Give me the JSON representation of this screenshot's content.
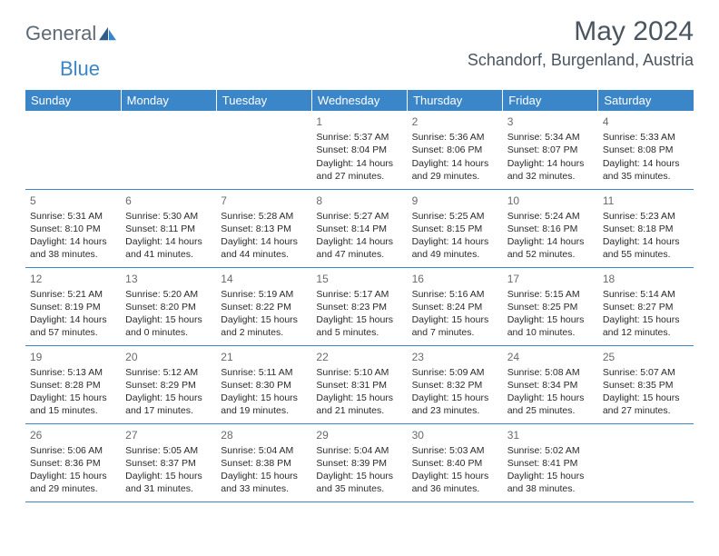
{
  "logo": {
    "text1": "General",
    "text2": "Blue"
  },
  "title": "May 2024",
  "location": "Schandorf, Burgenland, Austria",
  "colors": {
    "header_bg": "#3a86c8",
    "header_text": "#ffffff",
    "cell_border": "#3a86c8",
    "text": "#2a2a2a",
    "title_color": "#4a5560"
  },
  "weekdays": [
    "Sunday",
    "Monday",
    "Tuesday",
    "Wednesday",
    "Thursday",
    "Friday",
    "Saturday"
  ],
  "weeks": [
    [
      null,
      null,
      null,
      {
        "n": "1",
        "sr": "5:37 AM",
        "ss": "8:04 PM",
        "dl": "14 hours and 27 minutes."
      },
      {
        "n": "2",
        "sr": "5:36 AM",
        "ss": "8:06 PM",
        "dl": "14 hours and 29 minutes."
      },
      {
        "n": "3",
        "sr": "5:34 AM",
        "ss": "8:07 PM",
        "dl": "14 hours and 32 minutes."
      },
      {
        "n": "4",
        "sr": "5:33 AM",
        "ss": "8:08 PM",
        "dl": "14 hours and 35 minutes."
      }
    ],
    [
      {
        "n": "5",
        "sr": "5:31 AM",
        "ss": "8:10 PM",
        "dl": "14 hours and 38 minutes."
      },
      {
        "n": "6",
        "sr": "5:30 AM",
        "ss": "8:11 PM",
        "dl": "14 hours and 41 minutes."
      },
      {
        "n": "7",
        "sr": "5:28 AM",
        "ss": "8:13 PM",
        "dl": "14 hours and 44 minutes."
      },
      {
        "n": "8",
        "sr": "5:27 AM",
        "ss": "8:14 PM",
        "dl": "14 hours and 47 minutes."
      },
      {
        "n": "9",
        "sr": "5:25 AM",
        "ss": "8:15 PM",
        "dl": "14 hours and 49 minutes."
      },
      {
        "n": "10",
        "sr": "5:24 AM",
        "ss": "8:16 PM",
        "dl": "14 hours and 52 minutes."
      },
      {
        "n": "11",
        "sr": "5:23 AM",
        "ss": "8:18 PM",
        "dl": "14 hours and 55 minutes."
      }
    ],
    [
      {
        "n": "12",
        "sr": "5:21 AM",
        "ss": "8:19 PM",
        "dl": "14 hours and 57 minutes."
      },
      {
        "n": "13",
        "sr": "5:20 AM",
        "ss": "8:20 PM",
        "dl": "15 hours and 0 minutes."
      },
      {
        "n": "14",
        "sr": "5:19 AM",
        "ss": "8:22 PM",
        "dl": "15 hours and 2 minutes."
      },
      {
        "n": "15",
        "sr": "5:17 AM",
        "ss": "8:23 PM",
        "dl": "15 hours and 5 minutes."
      },
      {
        "n": "16",
        "sr": "5:16 AM",
        "ss": "8:24 PM",
        "dl": "15 hours and 7 minutes."
      },
      {
        "n": "17",
        "sr": "5:15 AM",
        "ss": "8:25 PM",
        "dl": "15 hours and 10 minutes."
      },
      {
        "n": "18",
        "sr": "5:14 AM",
        "ss": "8:27 PM",
        "dl": "15 hours and 12 minutes."
      }
    ],
    [
      {
        "n": "19",
        "sr": "5:13 AM",
        "ss": "8:28 PM",
        "dl": "15 hours and 15 minutes."
      },
      {
        "n": "20",
        "sr": "5:12 AM",
        "ss": "8:29 PM",
        "dl": "15 hours and 17 minutes."
      },
      {
        "n": "21",
        "sr": "5:11 AM",
        "ss": "8:30 PM",
        "dl": "15 hours and 19 minutes."
      },
      {
        "n": "22",
        "sr": "5:10 AM",
        "ss": "8:31 PM",
        "dl": "15 hours and 21 minutes."
      },
      {
        "n": "23",
        "sr": "5:09 AM",
        "ss": "8:32 PM",
        "dl": "15 hours and 23 minutes."
      },
      {
        "n": "24",
        "sr": "5:08 AM",
        "ss": "8:34 PM",
        "dl": "15 hours and 25 minutes."
      },
      {
        "n": "25",
        "sr": "5:07 AM",
        "ss": "8:35 PM",
        "dl": "15 hours and 27 minutes."
      }
    ],
    [
      {
        "n": "26",
        "sr": "5:06 AM",
        "ss": "8:36 PM",
        "dl": "15 hours and 29 minutes."
      },
      {
        "n": "27",
        "sr": "5:05 AM",
        "ss": "8:37 PM",
        "dl": "15 hours and 31 minutes."
      },
      {
        "n": "28",
        "sr": "5:04 AM",
        "ss": "8:38 PM",
        "dl": "15 hours and 33 minutes."
      },
      {
        "n": "29",
        "sr": "5:04 AM",
        "ss": "8:39 PM",
        "dl": "15 hours and 35 minutes."
      },
      {
        "n": "30",
        "sr": "5:03 AM",
        "ss": "8:40 PM",
        "dl": "15 hours and 36 minutes."
      },
      {
        "n": "31",
        "sr": "5:02 AM",
        "ss": "8:41 PM",
        "dl": "15 hours and 38 minutes."
      },
      null
    ]
  ],
  "labels": {
    "sunrise": "Sunrise:",
    "sunset": "Sunset:",
    "daylight": "Daylight:"
  }
}
